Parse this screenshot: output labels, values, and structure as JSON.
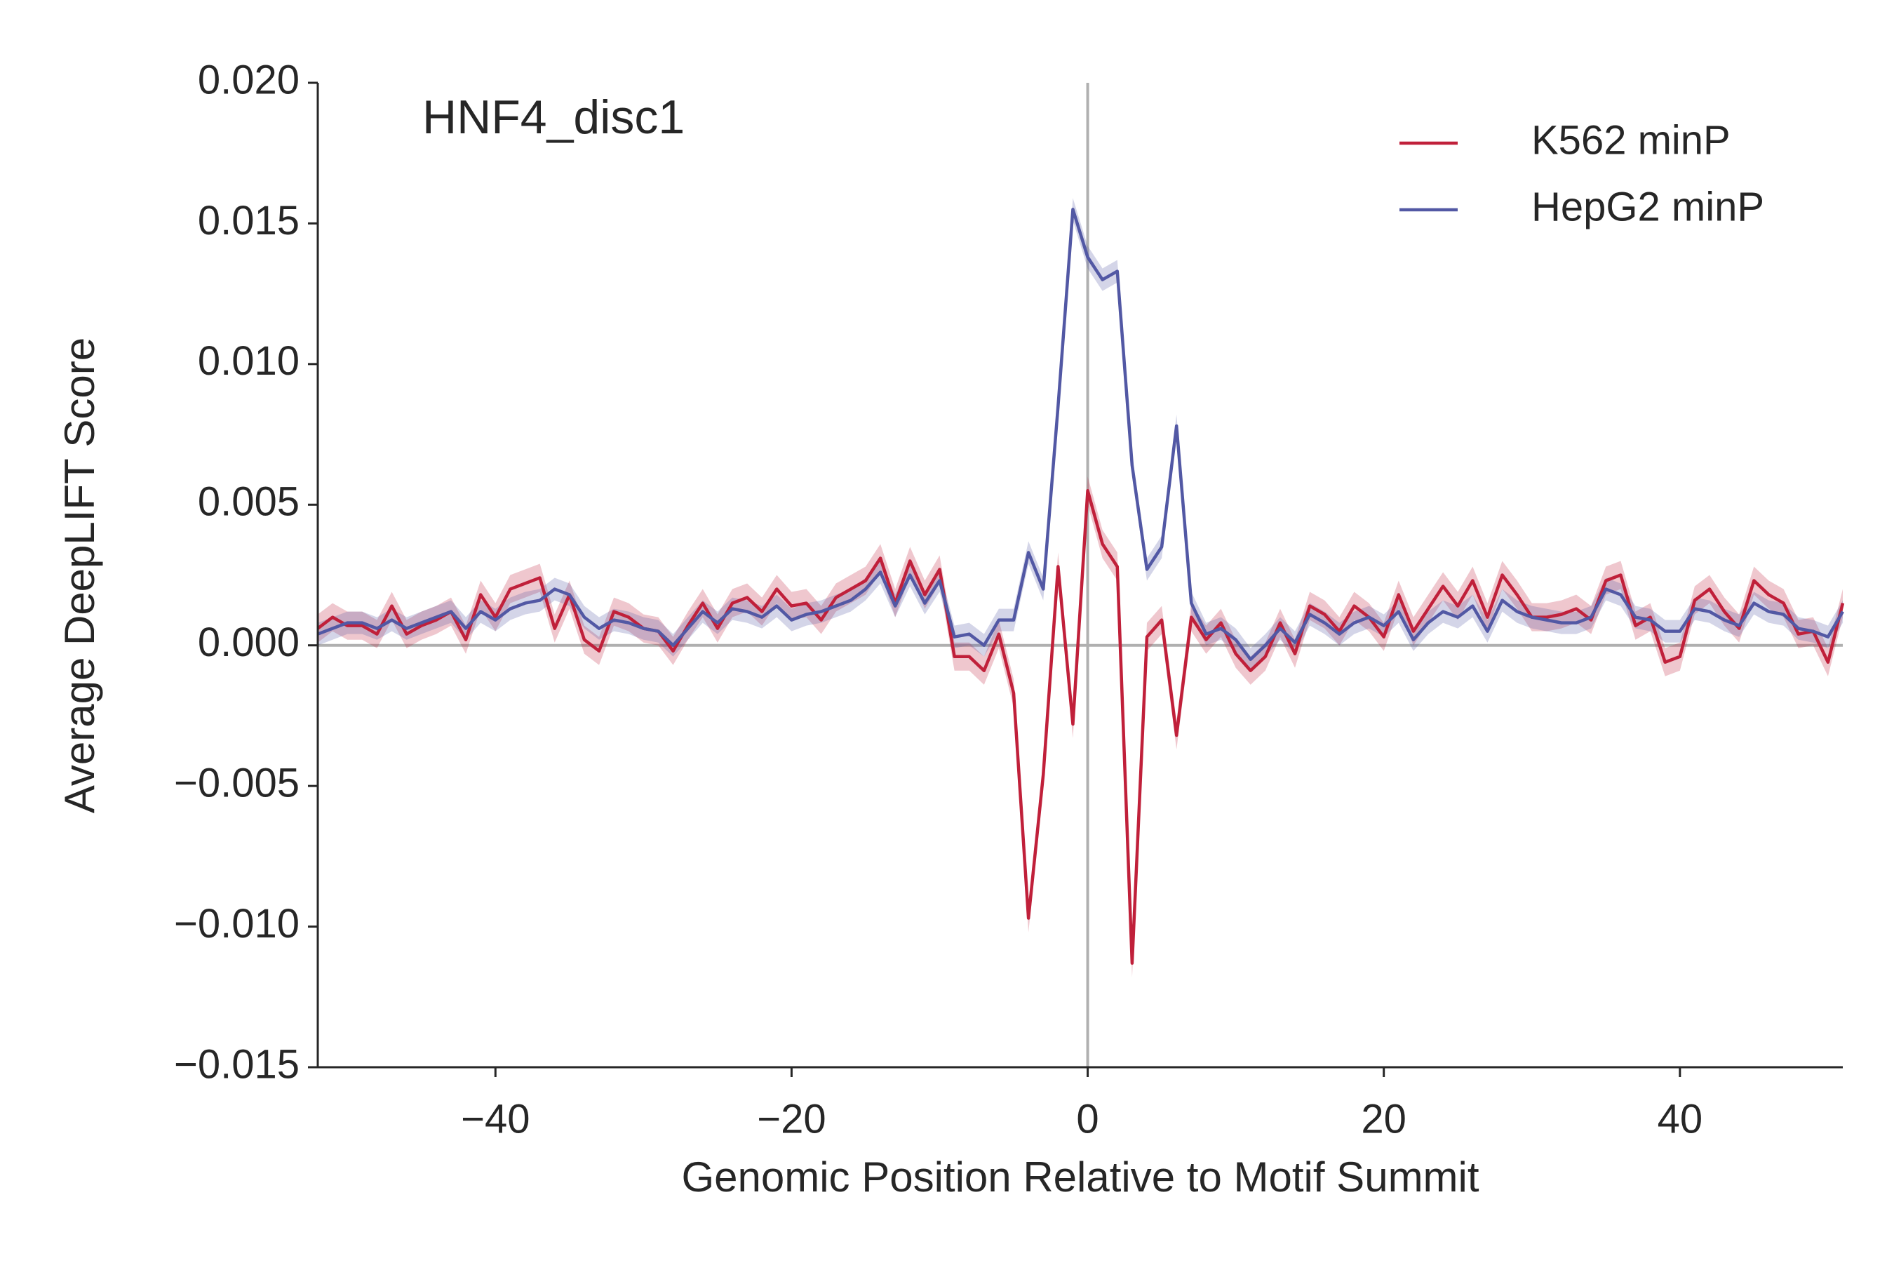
{
  "chart_data": {
    "type": "line",
    "title": "HNF4_disc1",
    "xlabel": "Genomic Position Relative to Motif Summit",
    "ylabel": "Average DeepLIFT Score",
    "x": [
      -52,
      -51,
      -50,
      -49,
      -48,
      -47,
      -46,
      -45,
      -44,
      -43,
      -42,
      -41,
      -40,
      -39,
      -38,
      -37,
      -36,
      -35,
      -34,
      -33,
      -32,
      -31,
      -30,
      -29,
      -28,
      -27,
      -26,
      -25,
      -24,
      -23,
      -22,
      -21,
      -20,
      -19,
      -18,
      -17,
      -16,
      -15,
      -14,
      -13,
      -12,
      -11,
      -10,
      -9,
      -8,
      -7,
      -6,
      -5,
      -4,
      -3,
      -2,
      -1,
      0,
      1,
      2,
      3,
      4,
      5,
      6,
      7,
      8,
      9,
      10,
      11,
      12,
      13,
      14,
      15,
      16,
      17,
      18,
      19,
      20,
      21,
      22,
      23,
      24,
      25,
      26,
      27,
      28,
      29,
      30,
      31,
      32,
      33,
      34,
      35,
      36,
      37,
      38,
      39,
      40,
      41,
      42,
      43,
      44,
      45,
      46,
      47,
      48,
      49,
      50,
      51
    ],
    "series": [
      {
        "name": "K562 minP",
        "color": "#c0203a",
        "error": 0.0005,
        "values": [
          0.0006,
          0.001,
          0.0007,
          0.0007,
          0.0004,
          0.0014,
          0.0004,
          0.0007,
          0.0009,
          0.0012,
          0.0002,
          0.0018,
          0.001,
          0.002,
          0.0022,
          0.0024,
          0.0006,
          0.0018,
          0.0002,
          -0.0002,
          0.0012,
          0.001,
          0.0006,
          0.0005,
          -0.0002,
          0.0007,
          0.0015,
          0.0006,
          0.0015,
          0.0017,
          0.0012,
          0.002,
          0.0014,
          0.0015,
          0.0009,
          0.0017,
          0.002,
          0.0023,
          0.0031,
          0.0015,
          0.003,
          0.0018,
          0.0027,
          -0.0004,
          -0.0004,
          -0.0009,
          0.0004,
          -0.0017,
          -0.0097,
          -0.0046,
          0.0028,
          -0.0028,
          0.0055,
          0.0036,
          0.0028,
          -0.0113,
          0.0003,
          0.0009,
          -0.0032,
          0.001,
          0.0002,
          0.0008,
          -0.0003,
          -0.0009,
          -0.0004,
          0.0008,
          -0.0003,
          0.0014,
          0.0011,
          0.0005,
          0.0014,
          0.001,
          0.0003,
          0.0018,
          0.0005,
          0.0013,
          0.0021,
          0.0014,
          0.0023,
          0.001,
          0.0025,
          0.0018,
          0.001,
          0.001,
          0.0011,
          0.0013,
          0.0009,
          0.0023,
          0.0025,
          0.0007,
          0.001,
          -0.0006,
          -0.0004,
          0.0016,
          0.002,
          0.0012,
          0.0006,
          0.0023,
          0.0018,
          0.0015,
          0.0004,
          0.0005,
          -0.0006,
          0.0015
        ]
      },
      {
        "name": "HepG2 minP",
        "color": "#5258a4",
        "error": 0.0004,
        "values": [
          0.0004,
          0.0006,
          0.0008,
          0.0008,
          0.0006,
          0.0009,
          0.0006,
          0.0008,
          0.001,
          0.0012,
          0.0006,
          0.0012,
          0.0009,
          0.0013,
          0.0015,
          0.0016,
          0.002,
          0.0018,
          0.001,
          0.0006,
          0.0009,
          0.0008,
          0.0006,
          0.0005,
          0.0,
          0.0006,
          0.0012,
          0.0008,
          0.0013,
          0.0012,
          0.001,
          0.0014,
          0.0009,
          0.0011,
          0.0012,
          0.0014,
          0.0016,
          0.002,
          0.0026,
          0.0014,
          0.0025,
          0.0015,
          0.0023,
          0.0003,
          0.0004,
          0.0,
          0.0009,
          0.0009,
          0.0033,
          0.002,
          0.0085,
          0.0155,
          0.0138,
          0.013,
          0.0133,
          0.0064,
          0.0027,
          0.0035,
          0.0078,
          0.0015,
          0.0004,
          0.0006,
          0.0002,
          -0.0005,
          0.0,
          0.0006,
          0.0001,
          0.0011,
          0.0008,
          0.0004,
          0.0008,
          0.001,
          0.0007,
          0.0012,
          0.0002,
          0.0008,
          0.0012,
          0.001,
          0.0014,
          0.0005,
          0.0016,
          0.0012,
          0.001,
          0.0009,
          0.0008,
          0.0008,
          0.001,
          0.002,
          0.0018,
          0.001,
          0.0009,
          0.0005,
          0.0005,
          0.0013,
          0.0012,
          0.0009,
          0.0007,
          0.0015,
          0.0012,
          0.0011,
          0.0006,
          0.0005,
          0.0003,
          0.0012
        ]
      }
    ],
    "xlim": [
      -52,
      51
    ],
    "ylim": [
      -0.015,
      0.02
    ],
    "xticks": [
      {
        "value": -40,
        "label": "−40"
      },
      {
        "value": -20,
        "label": "−20"
      },
      0,
      20,
      40
    ],
    "yticks": [
      {
        "value": -0.015,
        "label": "−0.015"
      },
      {
        "value": -0.01,
        "label": "−0.010"
      },
      {
        "value": -0.005,
        "label": "−0.005"
      },
      {
        "value": 0,
        "label": "0.000"
      },
      {
        "value": 0.005,
        "label": "0.005"
      },
      {
        "value": 0.01,
        "label": "0.010"
      },
      {
        "value": 0.015,
        "label": "0.015"
      },
      {
        "value": 0.02,
        "label": "0.020"
      }
    ],
    "legend": "upper right"
  }
}
